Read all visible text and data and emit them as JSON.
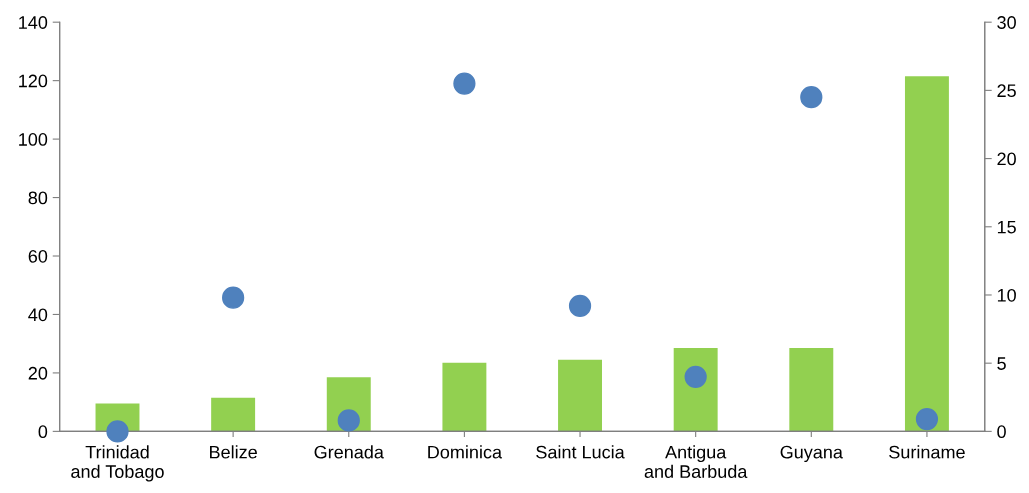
{
  "chart_data": {
    "type": "bar",
    "categories": [
      "Trinidad\nand Tobago",
      "Belize",
      "Grenada",
      "Dominica",
      "Saint Lucia",
      "Antigua\nand Barbuda",
      "Guyana",
      "Suriname"
    ],
    "series": [
      {
        "color": "#92d050",
        "values": [
          9.5,
          11.5,
          18.5,
          23.5,
          24.5,
          28.5,
          28.5,
          121.5
        ]
      },
      {
        "type": "scatter",
        "axis": "y2",
        "color": "#4f81bd",
        "values": [
          0,
          9.8,
          0.8,
          25.5,
          9.2,
          4.0,
          24.5,
          0.9
        ]
      }
    ],
    "ylim": [
      0,
      140
    ],
    "yticks": [
      0,
      20,
      40,
      60,
      80,
      100,
      120,
      140
    ],
    "y2lim": [
      0,
      30
    ],
    "y2ticks": [
      0,
      5,
      10,
      15,
      20,
      25,
      30
    ],
    "grid": false,
    "marker": "circle"
  }
}
